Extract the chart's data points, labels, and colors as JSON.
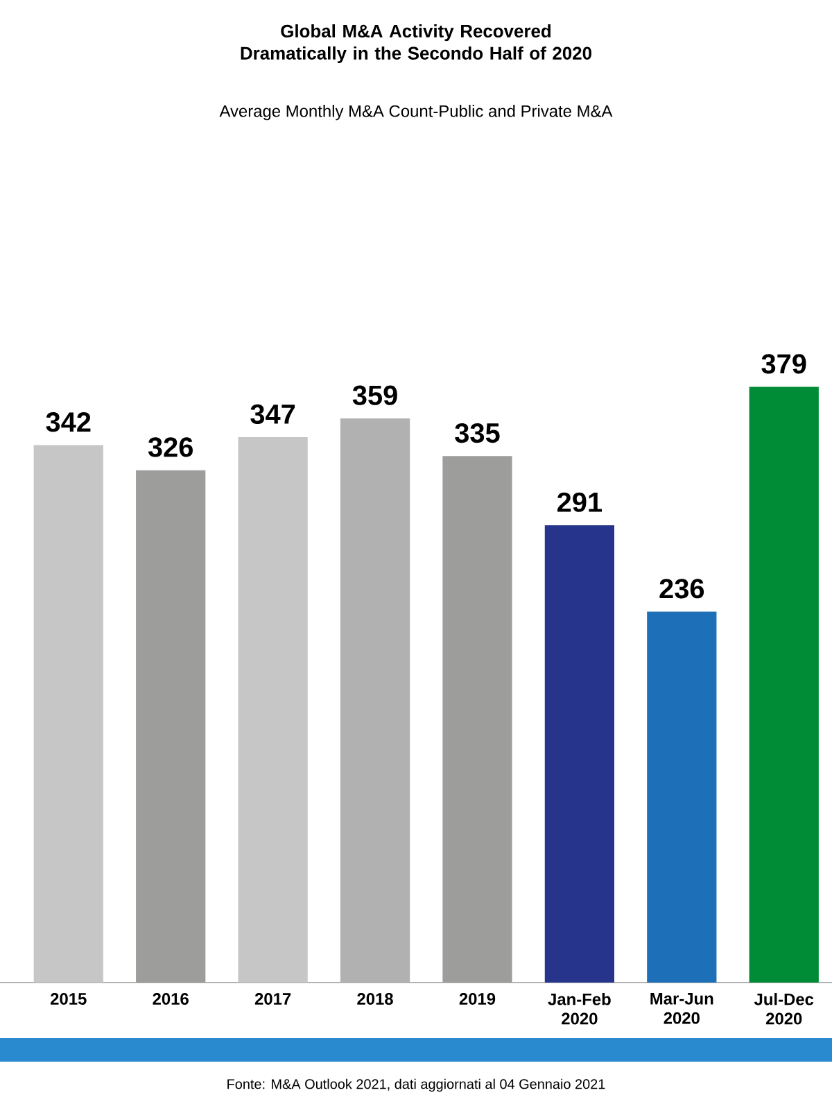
{
  "chart_data": {
    "type": "bar",
    "title": "Global M&A Activity Recovered Dramatically in the Secondo Half of 2020",
    "subtitle": "Average Monthly M&A Count-Public and Private M&A",
    "categories": [
      "2015",
      "2016",
      "2017",
      "2018",
      "2019",
      "Jan-Feb 2020",
      "Mar-Jun 2020",
      "Jul-Dec 2020"
    ],
    "values": [
      342,
      326,
      347,
      359,
      335,
      291,
      236,
      379
    ],
    "colors": [
      "#c6c6c6",
      "#9d9d9c",
      "#c6c6c6",
      "#b1b1b1",
      "#9d9d9c",
      "#27348b",
      "#1d70b7",
      "#008b36"
    ],
    "data_labels": true,
    "annotations": [
      "Fonte: M&A Outlook 2021, dati aggiornati al 04 Gennaio 2021"
    ]
  }
}
